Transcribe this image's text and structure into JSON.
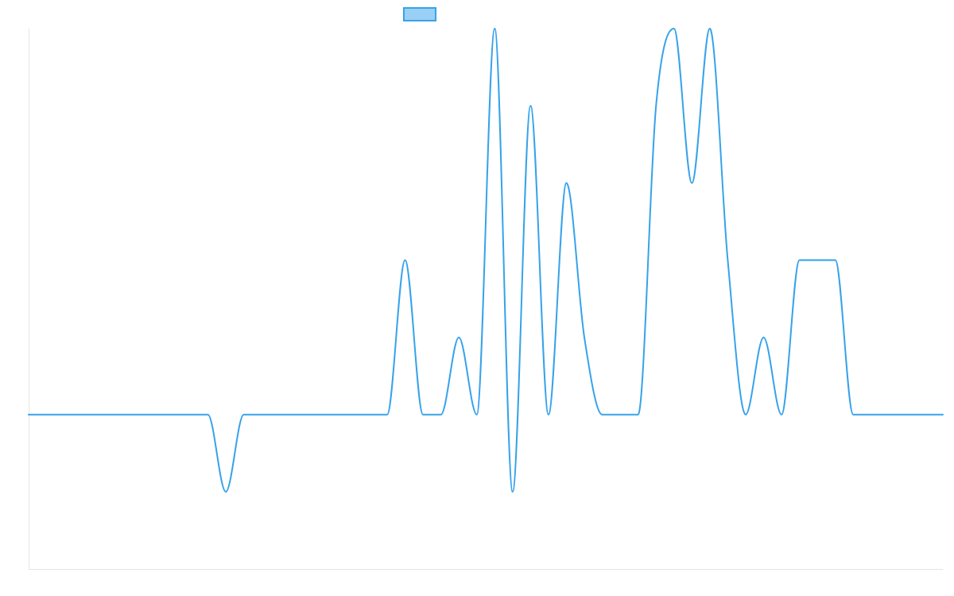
{
  "chart_data": {
    "type": "line",
    "title": "",
    "xlabel": "",
    "ylabel": "",
    "legend": {
      "placement": "top-center",
      "entries": [
        ""
      ]
    },
    "grid": false,
    "ylim": [
      -2,
      5
    ],
    "xlim": [
      0,
      51
    ],
    "x": [
      0,
      1,
      2,
      3,
      4,
      5,
      6,
      7,
      8,
      9,
      10,
      11,
      12,
      13,
      14,
      15,
      16,
      17,
      18,
      19,
      20,
      21,
      22,
      23,
      24,
      25,
      26,
      27,
      28,
      29,
      30,
      31,
      32,
      33,
      34,
      35,
      36,
      37,
      38,
      39,
      40,
      41,
      42,
      43,
      44,
      45,
      46,
      47,
      48,
      49,
      50,
      51
    ],
    "series": [
      {
        "name": "",
        "color": "#36a2eb",
        "fill": "#9ad0f5",
        "values": [
          0,
          0,
          0,
          0,
          0,
          0,
          0,
          0,
          0,
          0,
          0,
          -1,
          0,
          0,
          0,
          0,
          0,
          0,
          0,
          0,
          0,
          2,
          0,
          0,
          1,
          0,
          5,
          -1,
          4,
          0,
          3,
          1,
          0,
          0,
          0,
          4,
          5,
          3,
          5,
          2,
          0,
          1,
          0,
          2,
          2,
          2,
          0,
          0,
          0,
          0,
          0,
          0
        ]
      }
    ]
  }
}
